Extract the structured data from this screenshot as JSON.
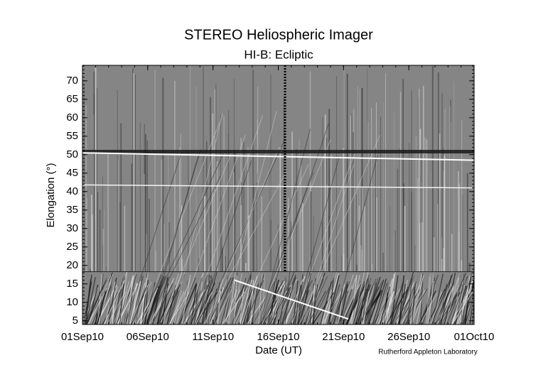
{
  "chart_data": {
    "type": "jmap",
    "title": "STEREO Heliospheric Imager",
    "subtitle": "HI-B: Ecliptic",
    "x_label": "Date (UT)",
    "y_label": "Elongation (°)",
    "credit": "Rutherford Appleton Laboratory",
    "xlim": [
      "2010-09-01",
      "2010-10-01"
    ],
    "xticks": [
      {
        "value": "2010-09-01",
        "label": "01Sep10"
      },
      {
        "value": "2010-09-06",
        "label": "06Sep10"
      },
      {
        "value": "2010-09-11",
        "label": "11Sep10"
      },
      {
        "value": "2010-09-16",
        "label": "16Sep10"
      },
      {
        "value": "2010-09-21",
        "label": "21Sep10"
      },
      {
        "value": "2010-09-26",
        "label": "26Sep10"
      },
      {
        "value": "2010-10-01",
        "label": "01Oct10"
      }
    ],
    "ylim": [
      4,
      74.2
    ],
    "yticks": [
      5,
      10,
      15,
      20,
      25,
      30,
      35,
      40,
      45,
      50,
      55,
      60,
      65,
      70
    ]
  }
}
